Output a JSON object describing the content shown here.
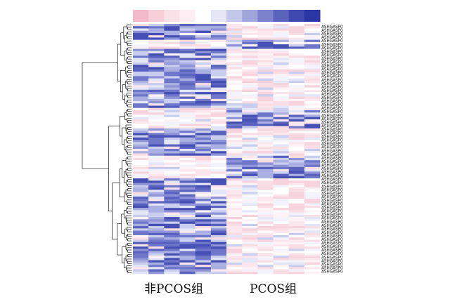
{
  "chart_data": {
    "type": "heatmap",
    "title": "",
    "xlabel": "",
    "ylabel": "",
    "column_groups": [
      {
        "name": "非PCOS组",
        "columns": 6
      },
      {
        "name": "PCOS组",
        "columns": 6
      }
    ],
    "row_label_text": "ASHGASP0",
    "row_count": 110,
    "color_key": [
      "#f2b9c8",
      "#f6cfd9",
      "#f9e1e7",
      "#fceef2",
      "#ffffff",
      "#e4e6f5",
      "#c3c7e9",
      "#a0a5da",
      "#7c82cc",
      "#5b63bd",
      "#3e49b0",
      "#2a36a3"
    ],
    "block_pattern": [
      {
        "rows": 7,
        "group1": "blue",
        "group2": "pink"
      },
      {
        "rows": 4,
        "group1": "pink",
        "group2": "blue"
      },
      {
        "rows": 26,
        "group1": "blue",
        "group2": "pink"
      },
      {
        "rows": 9,
        "group1": "pink",
        "group2": "blue"
      },
      {
        "rows": 12,
        "group1": "blue",
        "group2": "pink"
      },
      {
        "rows": 10,
        "group1": "pink",
        "group2": "blue"
      },
      {
        "rows": 42,
        "group1": "blue",
        "group2": "pink"
      }
    ]
  }
}
